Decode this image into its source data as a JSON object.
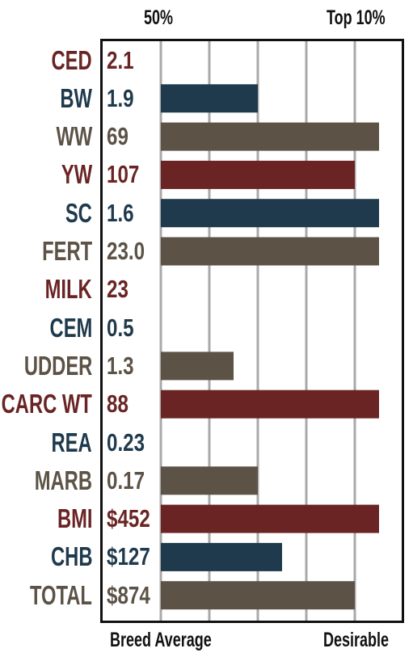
{
  "header": {
    "left_label": "50%",
    "right_label": "Top 10%"
  },
  "footer": {
    "left_label": "Breed Average",
    "right_label": "Desirable"
  },
  "colors": {
    "maroon": "#6a2424",
    "navy": "#1f3a4d",
    "taupe": "#5c5246",
    "grid": "#a9a9a9",
    "frame": "#111111"
  },
  "chart_data": {
    "type": "bar",
    "orientation": "horizontal",
    "x_scale_labels": [
      "Breed Average",
      "50%",
      "Top 10%",
      "Desirable"
    ],
    "categories": [
      "CED",
      "BW",
      "WW",
      "YW",
      "SC",
      "FERT",
      "MILK",
      "CEM",
      "UDDER",
      "CARC WT",
      "REA",
      "MARB",
      "BMI",
      "CHB",
      "TOTAL"
    ],
    "value_labels": [
      "2.1",
      "1.9",
      "69",
      "107",
      "1.6",
      "23.0",
      "23",
      "0.5",
      "1.3",
      "88",
      "0.23",
      "0.17",
      "$452",
      "$127",
      "$874"
    ],
    "bar_values": [
      0,
      0.4,
      0.9,
      0.8,
      0.9,
      0.9,
      0,
      0,
      0.3,
      0.9,
      0,
      0.4,
      0.9,
      0.5,
      0.8
    ],
    "bar_value_unit": "fraction of scale from Breed Average (0) to Desirable (1)",
    "row_colors": [
      "maroon",
      "navy",
      "taupe",
      "maroon",
      "navy",
      "taupe",
      "maroon",
      "navy",
      "taupe",
      "maroon",
      "navy",
      "taupe",
      "maroon",
      "navy",
      "taupe"
    ],
    "gridlines": 5,
    "grid": true
  }
}
